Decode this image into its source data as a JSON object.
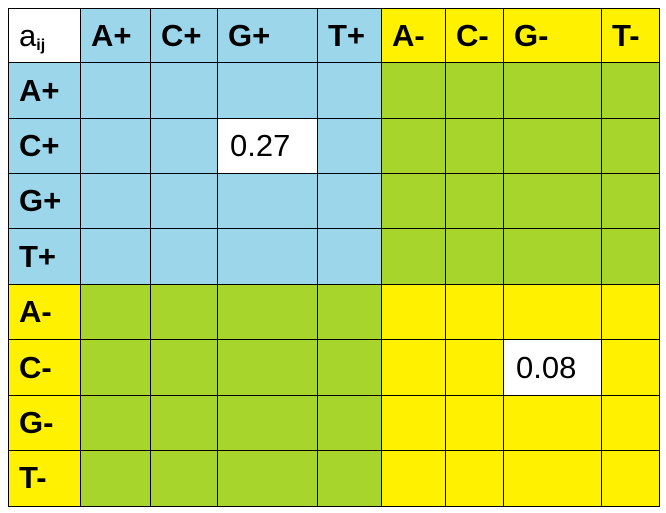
{
  "table": {
    "corner": {
      "main": "a",
      "sub": "ij"
    },
    "columns": [
      "A+",
      "C+",
      "G+",
      "T+",
      "A-",
      "C-",
      "G-",
      "T-"
    ],
    "rows": [
      {
        "label": "A+",
        "cells": [
          null,
          null,
          null,
          null,
          null,
          null,
          null,
          null
        ]
      },
      {
        "label": "C+",
        "cells": [
          null,
          null,
          0.27,
          null,
          null,
          null,
          null,
          null
        ]
      },
      {
        "label": "G+",
        "cells": [
          null,
          null,
          null,
          null,
          null,
          null,
          null,
          null
        ]
      },
      {
        "label": "T+",
        "cells": [
          null,
          null,
          null,
          null,
          null,
          null,
          null,
          null
        ]
      },
      {
        "label": "A-",
        "cells": [
          null,
          null,
          null,
          null,
          null,
          null,
          null,
          null
        ]
      },
      {
        "label": "C-",
        "cells": [
          null,
          null,
          null,
          null,
          null,
          null,
          0.08,
          null
        ]
      },
      {
        "label": "G-",
        "cells": [
          null,
          null,
          null,
          null,
          null,
          null,
          null,
          null
        ]
      },
      {
        "label": "T-",
        "cells": [
          null,
          null,
          null,
          null,
          null,
          null,
          null,
          null
        ]
      }
    ]
  }
}
